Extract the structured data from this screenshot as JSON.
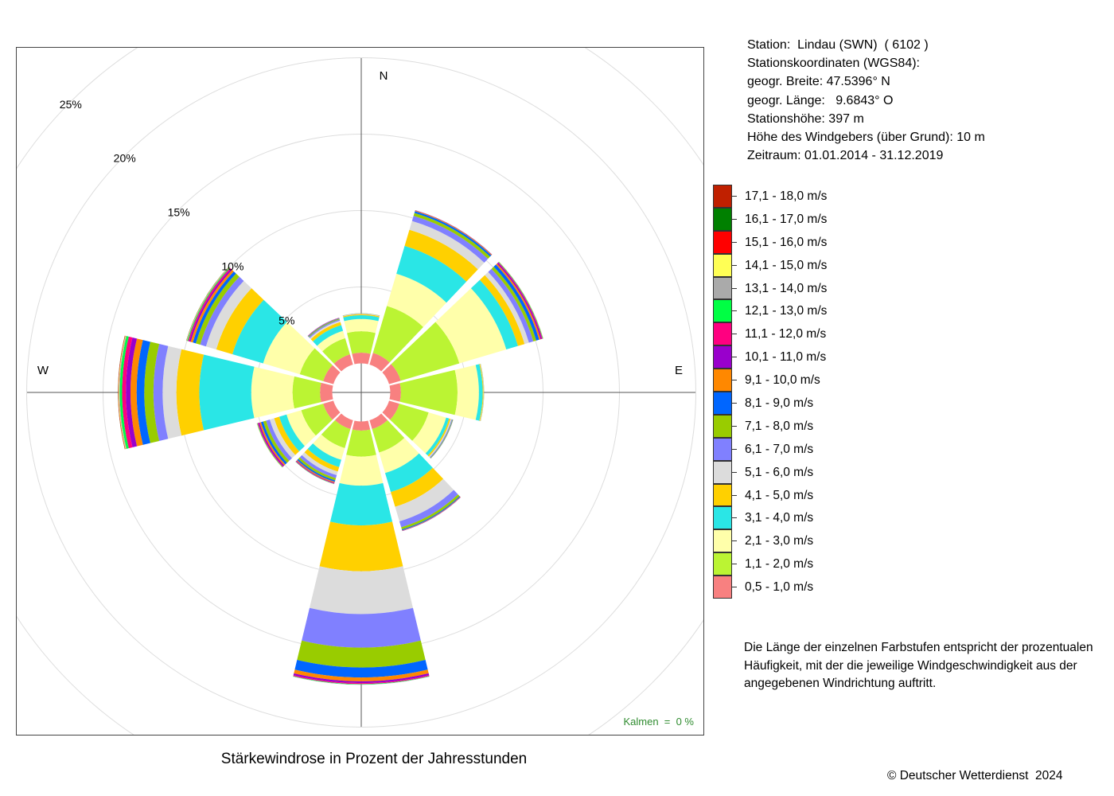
{
  "station": {
    "line1": "Station:  Lindau (SWN)  ( 6102 )",
    "line2": "Stationskoordinaten (WGS84):",
    "line3": "geogr. Breite: 47.5396° N",
    "line4": "geogr. Länge:   9.6843° O",
    "line5": "Stationshöhe: 397 m",
    "line6": "Höhe des Windgebers (über Grund): 10 m",
    "line7": "Zeitraum: 01.01.2014 - 31.12.2019"
  },
  "note": "Die Länge der einzelnen Farbstufen entspricht der prozentualen Häufigkeit, mit der die jeweilige Windgeschwindigkeit aus der angegebenen Windrichtung auftritt.",
  "copyright": "© Deutscher Wetterdienst  2024",
  "kalmen": "Kalmen  =  0 %",
  "chart_data": {
    "type": "wind-rose",
    "title": "Stärkewindrose in Prozent der Jahresstunden",
    "directions_deg": [
      0,
      30,
      60,
      90,
      120,
      150,
      180,
      210,
      240,
      270,
      300,
      330
    ],
    "compass_labels": {
      "N": "N",
      "E": "E",
      "S": "",
      "W": "W"
    },
    "inner_radius_pct": 1.9,
    "rings_pct": [
      5,
      10,
      15,
      20,
      25
    ],
    "ring_labels": [
      "5%",
      "10%",
      "15%",
      "20%",
      "25%"
    ],
    "colors": [
      "#f88080",
      "#bbf433",
      "#ffffaa",
      "#2ae6e6",
      "#ffd000",
      "#dcdcdc",
      "#8080ff",
      "#99cc00",
      "#0066ff",
      "#ff8800",
      "#9900cc",
      "#ff0080",
      "#00ff44",
      "#aaaaaa",
      "#ffff55",
      "#ff0000",
      "#008000",
      "#c02000"
    ],
    "series": [
      {
        "name": "0,5 - 1,0 m/s",
        "values": [
          0.7,
          0.8,
          0.8,
          0.7,
          0.7,
          0.6,
          0.6,
          0.6,
          0.7,
          0.8,
          0.7,
          0.7
        ]
      },
      {
        "name": "1,1 - 2,0 m/s",
        "values": [
          1.4,
          3.2,
          4.0,
          3.7,
          2.0,
          1.6,
          1.7,
          1.3,
          1.5,
          1.8,
          1.6,
          1.1
        ]
      },
      {
        "name": "2,1 - 3,0 m/s",
        "values": [
          0.8,
          2.2,
          3.2,
          1.4,
          1.2,
          1.4,
          1.9,
          0.8,
          1.0,
          2.7,
          2.5,
          0.5
        ]
      },
      {
        "name": "3,1 - 4,0 m/s",
        "values": [
          0.25,
          1.9,
          0.8,
          0.25,
          0.2,
          1.3,
          2.6,
          0.5,
          0.5,
          3.4,
          2.1,
          0.4
        ]
      },
      {
        "name": "4,1 - 5,0 m/s",
        "values": [
          0.07,
          1.1,
          0.45,
          0.05,
          0.1,
          1.0,
          3.0,
          0.3,
          0.35,
          1.5,
          1.1,
          0.2
        ]
      },
      {
        "name": "5,1 - 6,0 m/s",
        "values": [
          0.03,
          0.6,
          0.3,
          0.02,
          0.07,
          1.0,
          2.8,
          0.25,
          0.3,
          0.9,
          0.7,
          0.1
        ]
      },
      {
        "name": "6,1 - 7,0 m/s",
        "values": [
          0.02,
          0.35,
          0.3,
          0.01,
          0.05,
          0.4,
          2.2,
          0.2,
          0.25,
          0.6,
          0.4,
          0.08
        ]
      },
      {
        "name": "7,1 - 8,0 m/s",
        "values": [
          0.01,
          0.2,
          0.2,
          0.01,
          0.03,
          0.15,
          1.3,
          0.15,
          0.2,
          0.6,
          0.3,
          0.05
        ]
      },
      {
        "name": "8,1 - 9,0 m/s",
        "values": [
          0.0,
          0.12,
          0.2,
          0.0,
          0.02,
          0.06,
          0.65,
          0.1,
          0.15,
          0.5,
          0.2,
          0.03
        ]
      },
      {
        "name": "9,1 - 10,0 m/s",
        "values": [
          0.0,
          0.05,
          0.1,
          0.0,
          0.01,
          0.03,
          0.25,
          0.06,
          0.1,
          0.4,
          0.15,
          0.02
        ]
      },
      {
        "name": "10,1 - 11,0 m/s",
        "values": [
          0.0,
          0.02,
          0.08,
          0.0,
          0.0,
          0.02,
          0.12,
          0.04,
          0.08,
          0.3,
          0.1,
          0.02
        ]
      },
      {
        "name": "11,1 - 12,0 m/s",
        "values": [
          0.0,
          0.0,
          0.05,
          0.0,
          0.0,
          0.0,
          0.06,
          0.03,
          0.05,
          0.25,
          0.08,
          0.0
        ]
      },
      {
        "name": "12,1 - 13,0 m/s",
        "values": [
          0.0,
          0.0,
          0.03,
          0.0,
          0.0,
          0.0,
          0.03,
          0.02,
          0.03,
          0.15,
          0.05,
          0.0
        ]
      },
      {
        "name": "13,1 - 14,0 m/s",
        "values": [
          0.0,
          0.0,
          0.02,
          0.0,
          0.0,
          0.0,
          0.02,
          0.01,
          0.02,
          0.05,
          0.03,
          0.0
        ]
      },
      {
        "name": "14,1 - 15,0 m/s",
        "values": [
          0.0,
          0.0,
          0.01,
          0.0,
          0.0,
          0.0,
          0.0,
          0.0,
          0.01,
          0.03,
          0.02,
          0.0
        ]
      },
      {
        "name": "15,1 - 16,0 m/s",
        "values": [
          0.0,
          0.0,
          0.0,
          0.0,
          0.0,
          0.0,
          0.0,
          0.0,
          0.0,
          0.02,
          0.01,
          0.0
        ]
      },
      {
        "name": "16,1 - 17,0 m/s",
        "values": [
          0.0,
          0.0,
          0.0,
          0.0,
          0.0,
          0.0,
          0.0,
          0.0,
          0.0,
          0.01,
          0.01,
          0.0
        ]
      },
      {
        "name": "17,1 - 18,0 m/s",
        "values": [
          0.0,
          0.0,
          0.0,
          0.0,
          0.0,
          0.0,
          0.0,
          0.0,
          0.0,
          0.01,
          0.0,
          0.0
        ]
      }
    ]
  }
}
